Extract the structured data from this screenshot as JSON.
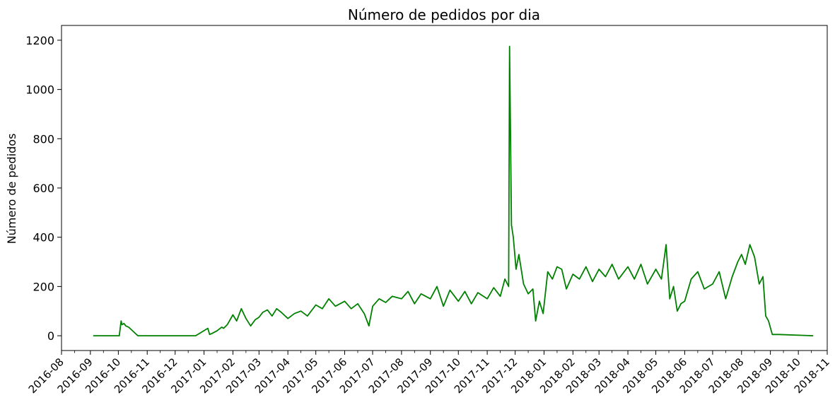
{
  "chart_data": {
    "type": "line",
    "title": "Número de pedidos por dia",
    "xlabel": "",
    "ylabel": "Número de pedidos",
    "color": "#008000",
    "grid": false,
    "legend": "none",
    "ylim": [
      -60,
      1260
    ],
    "xlim": [
      "2016-08-01",
      "2018-11-01"
    ],
    "y_ticks": [
      0,
      200,
      400,
      600,
      800,
      1000,
      1200
    ],
    "x_ticks": [
      "2016-08",
      "2016-09",
      "2016-10",
      "2016-11",
      "2016-12",
      "2017-01",
      "2017-02",
      "2017-03",
      "2017-04",
      "2017-05",
      "2017-06",
      "2017-07",
      "2017-08",
      "2017-09",
      "2017-10",
      "2017-11",
      "2017-12",
      "2018-01",
      "2018-02",
      "2018-03",
      "2018-04",
      "2018-05",
      "2018-06",
      "2018-07",
      "2018-08",
      "2018-09",
      "2018-10",
      "2018-11"
    ],
    "series": [
      {
        "x": [
          "2016-09-04",
          "2016-10-02",
          "2016-10-04",
          "2016-10-05",
          "2016-10-07",
          "2016-10-09",
          "2016-10-12",
          "2016-10-22",
          "2016-12-23",
          "2017-01-05",
          "2017-01-07",
          "2017-01-10",
          "2017-01-15",
          "2017-01-20",
          "2017-01-22",
          "2017-01-26",
          "2017-02-01",
          "2017-02-05",
          "2017-02-10",
          "2017-02-15",
          "2017-02-20",
          "2017-02-25",
          "2017-03-01",
          "2017-03-05",
          "2017-03-10",
          "2017-03-15",
          "2017-03-20",
          "2017-03-25",
          "2017-04-01",
          "2017-04-08",
          "2017-04-15",
          "2017-04-22",
          "2017-05-01",
          "2017-05-08",
          "2017-05-15",
          "2017-05-22",
          "2017-06-01",
          "2017-06-08",
          "2017-06-15",
          "2017-06-22",
          "2017-06-27",
          "2017-07-01",
          "2017-07-08",
          "2017-07-15",
          "2017-07-22",
          "2017-08-01",
          "2017-08-08",
          "2017-08-15",
          "2017-08-22",
          "2017-09-01",
          "2017-09-08",
          "2017-09-15",
          "2017-09-22",
          "2017-10-01",
          "2017-10-08",
          "2017-10-15",
          "2017-10-22",
          "2017-11-01",
          "2017-11-08",
          "2017-11-15",
          "2017-11-20",
          "2017-11-24",
          "2017-11-25",
          "2017-11-27",
          "2017-11-29",
          "2017-12-02",
          "2017-12-05",
          "2017-12-10",
          "2017-12-15",
          "2017-12-20",
          "2017-12-23",
          "2017-12-27",
          "2017-12-31",
          "2018-01-05",
          "2018-01-10",
          "2018-01-15",
          "2018-01-20",
          "2018-01-25",
          "2018-02-01",
          "2018-02-08",
          "2018-02-15",
          "2018-02-22",
          "2018-03-01",
          "2018-03-08",
          "2018-03-15",
          "2018-03-22",
          "2018-04-01",
          "2018-04-08",
          "2018-04-15",
          "2018-04-22",
          "2018-05-01",
          "2018-05-07",
          "2018-05-12",
          "2018-05-16",
          "2018-05-20",
          "2018-05-24",
          "2018-05-28",
          "2018-06-01",
          "2018-06-08",
          "2018-06-15",
          "2018-06-22",
          "2018-07-01",
          "2018-07-08",
          "2018-07-15",
          "2018-07-22",
          "2018-07-28",
          "2018-08-01",
          "2018-08-05",
          "2018-08-10",
          "2018-08-15",
          "2018-08-20",
          "2018-08-24",
          "2018-08-27",
          "2018-08-30",
          "2018-09-03",
          "2018-09-10",
          "2018-10-17"
        ],
        "values": [
          0,
          0,
          60,
          45,
          50,
          40,
          35,
          0,
          0,
          30,
          5,
          10,
          20,
          35,
          30,
          45,
          85,
          60,
          110,
          70,
          40,
          65,
          75,
          95,
          105,
          80,
          110,
          95,
          70,
          90,
          100,
          80,
          125,
          110,
          150,
          120,
          140,
          110,
          130,
          90,
          40,
          120,
          150,
          135,
          160,
          150,
          180,
          130,
          170,
          150,
          200,
          120,
          185,
          140,
          180,
          130,
          175,
          150,
          195,
          160,
          230,
          200,
          1175,
          450,
          400,
          270,
          330,
          210,
          170,
          190,
          60,
          140,
          90,
          260,
          230,
          280,
          270,
          190,
          250,
          230,
          280,
          220,
          270,
          240,
          290,
          230,
          280,
          230,
          290,
          210,
          270,
          230,
          370,
          150,
          200,
          100,
          130,
          140,
          230,
          260,
          190,
          210,
          260,
          150,
          240,
          300,
          330,
          290,
          370,
          320,
          210,
          240,
          80,
          60,
          5,
          5,
          0
        ]
      }
    ]
  }
}
